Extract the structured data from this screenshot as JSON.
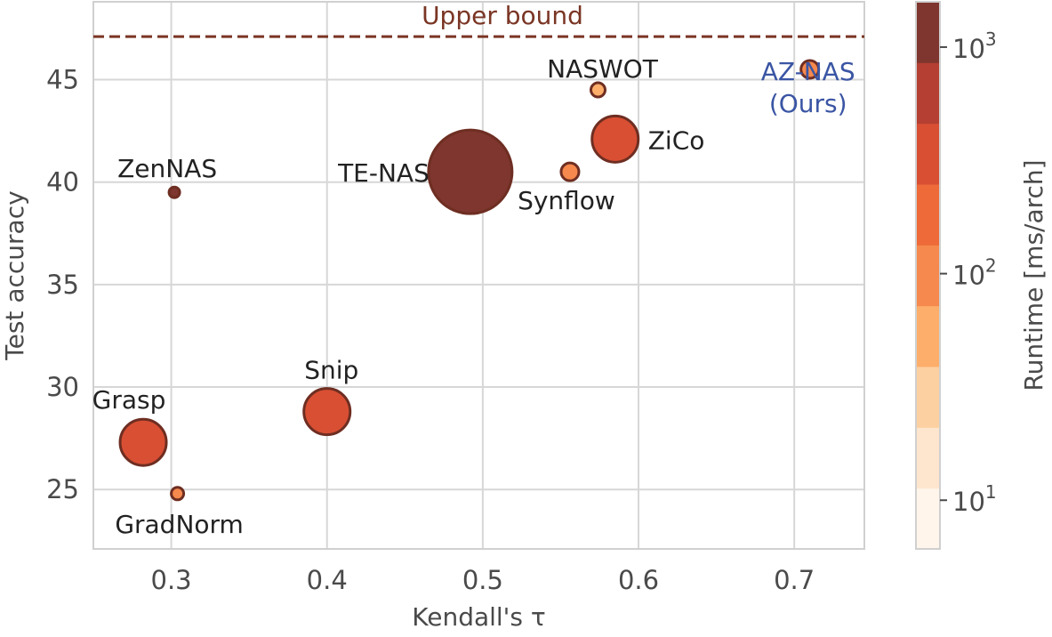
{
  "chart_data": {
    "type": "scatter",
    "xlabel": "Kendall's τ",
    "ylabel": "Test accuracy",
    "xlim": [
      0.25,
      0.745
    ],
    "ylim": [
      22.1,
      48.8
    ],
    "xticks": [
      0.3,
      0.4,
      0.5,
      0.6,
      0.7
    ],
    "xtick_labels": [
      "0.3",
      "0.4",
      "0.5",
      "0.6",
      "0.7"
    ],
    "yticks": [
      25,
      30,
      35,
      40,
      45
    ],
    "ytick_labels": [
      "25",
      "30",
      "35",
      "40",
      "45"
    ],
    "grid": true,
    "reference_line": {
      "label": "Upper bound",
      "y": 47.1,
      "color": "#7a3524"
    },
    "points": [
      {
        "label": "ZenNAS",
        "x": 0.302,
        "y": 39.5,
        "runtime_ms": 1000,
        "label_lines": [
          "ZenNAS"
        ]
      },
      {
        "label": "GradNorm",
        "x": 0.304,
        "y": 24.8,
        "runtime_ms": 100,
        "label_lines": [
          "GradNorm"
        ]
      },
      {
        "label": "Grasp",
        "x": 0.282,
        "y": 27.3,
        "runtime_ms": 400,
        "label_lines": [
          "Grasp"
        ]
      },
      {
        "label": "Snip",
        "x": 0.4,
        "y": 28.8,
        "runtime_ms": 400,
        "label_lines": [
          "Snip"
        ]
      },
      {
        "label": "TE-NAS",
        "x": 0.492,
        "y": 40.5,
        "runtime_ms": 1300,
        "label_lines": [
          "TE-NAS"
        ]
      },
      {
        "label": "Synflow",
        "x": 0.556,
        "y": 40.5,
        "runtime_ms": 80,
        "label_lines": [
          "Synflow"
        ]
      },
      {
        "label": "NASWOT",
        "x": 0.574,
        "y": 44.5,
        "runtime_ms": 50,
        "label_lines": [
          "NASWOT"
        ]
      },
      {
        "label": "ZiCo",
        "x": 0.585,
        "y": 42.1,
        "runtime_ms": 400,
        "label_lines": [
          "ZiCo"
        ]
      },
      {
        "label": "AZ-NAS (Ours)",
        "x": 0.71,
        "y": 45.5,
        "runtime_ms": 80,
        "label_lines": [
          "AZ-NAS",
          "(Ours)"
        ],
        "label_color": "#3a55a4"
      }
    ],
    "colorbar": {
      "label": "Runtime [ms/arch]",
      "scale": "log",
      "colors": [
        "#fff5eb",
        "#fee6ce",
        "#fdd0a2",
        "#fdae6b",
        "#f6894d",
        "#ee6a38",
        "#d94f33",
        "#b43f32",
        "#7e362e"
      ],
      "ticks": [
        {
          "value": 10,
          "base": "10",
          "exp": "1"
        },
        {
          "value": 100,
          "base": "10",
          "exp": "2"
        },
        {
          "value": 1000,
          "base": "10",
          "exp": "3"
        }
      ]
    }
  }
}
